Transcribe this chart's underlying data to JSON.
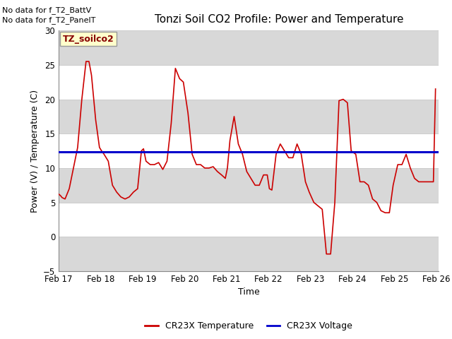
{
  "title": "Tonzi Soil CO2 Profile: Power and Temperature",
  "xlabel": "Time",
  "ylabel": "Power (V) / Temperature (C)",
  "ylim": [
    -5,
    30
  ],
  "yticks": [
    -5,
    0,
    5,
    10,
    15,
    20,
    25,
    30
  ],
  "background_color": "#ffffff",
  "plot_bg_color": "#ffffff",
  "no_data_texts": [
    "No data for f_T2_BattV",
    "No data for f_T2_PanelT"
  ],
  "legend_label_box": "TZ_soilco2",
  "legend_label_box_color": "#ffffcc",
  "legend_label_box_border": "#999999",
  "temp_color": "#cc0000",
  "voltage_color": "#0000cc",
  "voltage_value": 12.4,
  "band_color": "#d8d8d8",
  "temp_x": [
    17.0,
    17.04,
    17.08,
    17.15,
    17.25,
    17.45,
    17.55,
    17.65,
    17.72,
    17.78,
    17.88,
    17.97,
    18.02,
    18.08,
    18.18,
    18.28,
    18.38,
    18.48,
    18.58,
    18.68,
    18.78,
    18.88,
    18.97,
    19.02,
    19.08,
    19.18,
    19.28,
    19.38,
    19.48,
    19.58,
    19.68,
    19.78,
    19.88,
    19.97,
    20.08,
    20.18,
    20.28,
    20.38,
    20.48,
    20.58,
    20.68,
    20.78,
    20.88,
    20.97,
    21.02,
    21.08,
    21.18,
    21.28,
    21.38,
    21.48,
    21.58,
    21.68,
    21.78,
    21.88,
    21.97,
    22.02,
    22.08,
    22.18,
    22.28,
    22.38,
    22.48,
    22.58,
    22.63,
    22.68,
    22.78,
    22.88,
    22.97,
    23.08,
    23.18,
    23.28,
    23.38,
    23.48,
    23.58,
    23.68,
    23.78,
    23.88,
    23.97,
    24.08,
    24.18,
    24.28,
    24.38,
    24.48,
    24.58,
    24.68,
    24.78,
    24.88,
    24.97,
    25.08,
    25.18,
    25.28,
    25.38,
    25.48,
    25.58,
    25.68,
    25.78,
    25.88,
    25.93,
    25.98
  ],
  "temp_y": [
    6.2,
    6.0,
    5.7,
    5.5,
    7.0,
    13.0,
    20.0,
    25.5,
    25.5,
    23.5,
    17.0,
    13.0,
    12.5,
    12.0,
    11.0,
    7.5,
    6.5,
    5.8,
    5.5,
    5.8,
    6.5,
    7.0,
    12.5,
    12.8,
    11.0,
    10.5,
    10.5,
    10.8,
    9.8,
    11.0,
    16.5,
    24.5,
    23.0,
    22.5,
    18.0,
    12.0,
    10.5,
    10.5,
    10.0,
    10.0,
    10.2,
    9.5,
    9.0,
    8.5,
    10.0,
    14.0,
    17.5,
    13.5,
    12.0,
    9.5,
    8.5,
    7.5,
    7.5,
    9.0,
    9.0,
    7.0,
    6.8,
    12.0,
    13.5,
    12.5,
    11.5,
    11.5,
    12.5,
    13.5,
    12.0,
    8.0,
    6.5,
    5.0,
    4.5,
    4.0,
    -2.5,
    -2.5,
    5.0,
    19.8,
    20.0,
    19.5,
    12.5,
    12.0,
    8.0,
    8.0,
    7.5,
    5.5,
    5.0,
    3.8,
    3.5,
    3.5,
    7.5,
    10.5,
    10.5,
    12.0,
    10.0,
    8.5,
    8.0,
    8.0,
    8.0,
    8.0,
    8.0,
    21.5
  ],
  "xtick_positions": [
    17,
    18,
    19,
    20,
    21,
    22,
    23,
    24,
    25,
    26
  ],
  "xtick_labels": [
    "Feb 17",
    "Feb 18",
    "Feb 19",
    "Feb 20",
    "Feb 21",
    "Feb 22",
    "Feb 23",
    "Feb 24",
    "Feb 25",
    "Feb 26"
  ],
  "grid_color": "#cccccc",
  "legend_bottom_labels": [
    "CR23X Temperature",
    "CR23X Voltage"
  ]
}
